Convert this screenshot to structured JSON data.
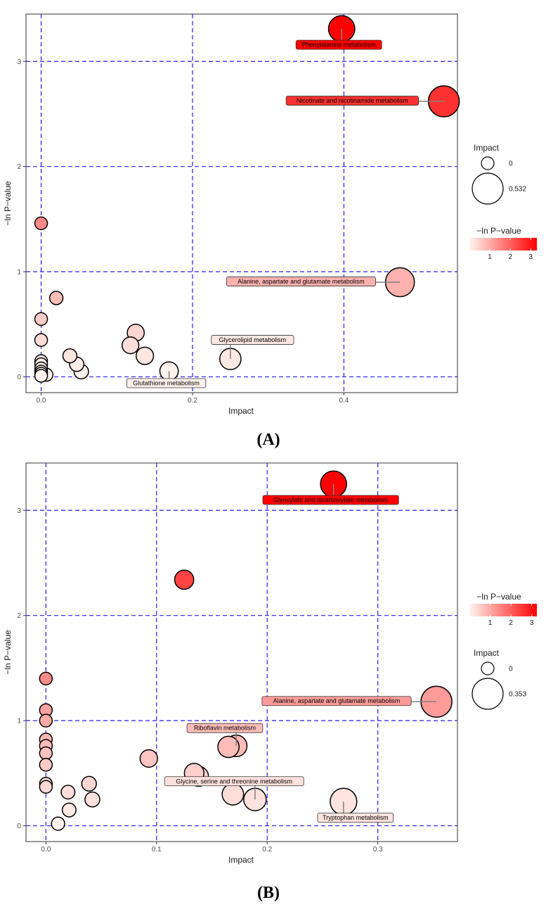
{
  "colors": {
    "grid": "#2b1cf0",
    "low": "#fff5f0",
    "high": "#ff0000",
    "bubble_stroke": "#000000",
    "leader": "#7f7f7f"
  },
  "chart_data": [
    {
      "type": "scatter",
      "panel_label": "(A)",
      "title": "",
      "xlabel": "Impact",
      "ylabel": "−ln P−value",
      "xlim": [
        -0.02,
        0.55
      ],
      "ylim": [
        -0.15,
        3.45
      ],
      "xticks": [
        0.0,
        0.2,
        0.4
      ],
      "xtick_labels": [
        "0.0",
        "0.2",
        "0.4"
      ],
      "yticks": [
        0,
        1,
        2,
        3
      ],
      "ytick_labels": [
        "0",
        "1",
        "2",
        "3"
      ],
      "grid": true,
      "size_encodes": "Impact",
      "color_encodes": "−ln P−value",
      "legend_position": "right",
      "legend_order": [
        "size",
        "color"
      ],
      "size_legend": {
        "title": "Impact",
        "min_label": "0",
        "max_label": "0.532",
        "min_value": 0,
        "max_value": 0.532
      },
      "color_legend": {
        "title": "−ln P−value",
        "ticks": [
          1,
          2,
          3
        ],
        "tick_labels": [
          "1",
          "2",
          "3"
        ],
        "min": 0,
        "max": 3.3
      },
      "points": [
        {
          "x": 0.397,
          "y": 3.31,
          "label": "Phenylalanine metabolism",
          "label_anchor": "below-left"
        },
        {
          "x": 0.532,
          "y": 2.62,
          "label": "Nicotinate and nicotinamide metabolism",
          "label_anchor": "left"
        },
        {
          "x": 0.474,
          "y": 0.9,
          "label": "Alanine, aspartate and glutamate metabolism",
          "label_anchor": "left"
        },
        {
          "x": 0.25,
          "y": 0.17,
          "label": "Glycerolipid metabolism",
          "label_anchor": "above-right"
        },
        {
          "x": 0.169,
          "y": 0.055,
          "label": "Glutathione metabolism",
          "label_anchor": "below-left"
        },
        {
          "x": 0.0,
          "y": 1.46
        },
        {
          "x": 0.02,
          "y": 0.75
        },
        {
          "x": 0.0,
          "y": 0.55
        },
        {
          "x": 0.0,
          "y": 0.35
        },
        {
          "x": 0.0,
          "y": 0.15
        },
        {
          "x": 0.0,
          "y": 0.12
        },
        {
          "x": 0.0,
          "y": 0.08
        },
        {
          "x": 0.0,
          "y": 0.05
        },
        {
          "x": 0.0,
          "y": 0.03
        },
        {
          "x": 0.007,
          "y": 0.02
        },
        {
          "x": 0.0,
          "y": 0.01
        },
        {
          "x": 0.038,
          "y": 0.2
        },
        {
          "x": 0.047,
          "y": 0.12
        },
        {
          "x": 0.053,
          "y": 0.05
        },
        {
          "x": 0.125,
          "y": 0.42
        },
        {
          "x": 0.118,
          "y": 0.3
        },
        {
          "x": 0.137,
          "y": 0.2
        }
      ]
    },
    {
      "type": "scatter",
      "panel_label": "(B)",
      "title": "",
      "xlabel": "Impact",
      "ylabel": "−ln P−value",
      "xlim": [
        -0.018,
        0.372
      ],
      "ylim": [
        -0.15,
        3.45
      ],
      "xticks": [
        0.0,
        0.1,
        0.2,
        0.3
      ],
      "xtick_labels": [
        "0.0",
        "0.1",
        "0.2",
        "0.3"
      ],
      "yticks": [
        0,
        1,
        2,
        3
      ],
      "ytick_labels": [
        "0",
        "1",
        "2",
        "3"
      ],
      "grid": true,
      "size_encodes": "Impact",
      "color_encodes": "−ln P−value",
      "legend_position": "right",
      "legend_order": [
        "color",
        "size"
      ],
      "size_legend": {
        "title": "Impact",
        "min_label": "0",
        "max_label": "0.353",
        "min_value": 0,
        "max_value": 0.353
      },
      "color_legend": {
        "title": "−ln P−value",
        "ticks": [
          1,
          2,
          3
        ],
        "tick_labels": [
          "1",
          "2",
          "3"
        ],
        "min": 0,
        "max": 3.25
      },
      "points": [
        {
          "x": 0.26,
          "y": 3.25,
          "label": "Glyoxylate and dicarboxylate metabolism",
          "label_anchor": "below-left"
        },
        {
          "x": 0.125,
          "y": 2.34
        },
        {
          "x": 0.353,
          "y": 1.18,
          "label": "Alanine, aspartate and glutamate metabolism",
          "label_anchor": "left"
        },
        {
          "x": 0.172,
          "y": 0.76,
          "label": "Riboflavin metabolism",
          "label_anchor": "above-left"
        },
        {
          "x": 0.165,
          "y": 0.75
        },
        {
          "x": 0.189,
          "y": 0.25,
          "label": "Glycine, serine and threonine metabolism",
          "label_anchor": "above-left"
        },
        {
          "x": 0.269,
          "y": 0.23,
          "label": "Tryptophan metabolism",
          "label_anchor": "below-right"
        },
        {
          "x": 0.0,
          "y": 1.4
        },
        {
          "x": 0.0,
          "y": 1.1
        },
        {
          "x": 0.0,
          "y": 1.0
        },
        {
          "x": 0.0,
          "y": 0.82
        },
        {
          "x": 0.0,
          "y": 0.76
        },
        {
          "x": 0.0,
          "y": 0.69
        },
        {
          "x": 0.0,
          "y": 0.58
        },
        {
          "x": 0.0,
          "y": 0.4
        },
        {
          "x": 0.0,
          "y": 0.37
        },
        {
          "x": 0.011,
          "y": 0.02
        },
        {
          "x": 0.02,
          "y": 0.32
        },
        {
          "x": 0.021,
          "y": 0.15
        },
        {
          "x": 0.039,
          "y": 0.4
        },
        {
          "x": 0.042,
          "y": 0.25
        },
        {
          "x": 0.093,
          "y": 0.64
        },
        {
          "x": 0.134,
          "y": 0.5
        },
        {
          "x": 0.138,
          "y": 0.47
        },
        {
          "x": 0.169,
          "y": 0.3
        }
      ]
    }
  ]
}
